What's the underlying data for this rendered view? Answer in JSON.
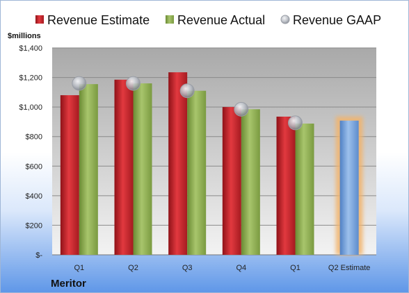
{
  "chart_data": {
    "type": "bar",
    "title": "",
    "ylabel": "$millions",
    "company": "Meritor",
    "categories": [
      "Q1",
      "Q2",
      "Q3",
      "Q4",
      "Q1",
      "Q2 Estimate"
    ],
    "ylim": [
      0,
      1400
    ],
    "yticks": [
      0,
      200,
      400,
      600,
      800,
      1000,
      1200,
      1400
    ],
    "ytick_labels": [
      "$-",
      "$200",
      "$400",
      "$600",
      "$800",
      "$1,000",
      "$1,200",
      "$1,400"
    ],
    "grid": true,
    "legend_position": "top",
    "series": [
      {
        "name": "Revenue Estimate",
        "type": "bar",
        "color": "#c0272d",
        "values": [
          1080,
          1185,
          1235,
          1000,
          935,
          null
        ]
      },
      {
        "name": "Revenue Actual",
        "type": "bar",
        "color": "#8aab4e",
        "values": [
          1155,
          1160,
          1110,
          985,
          888,
          null
        ]
      },
      {
        "name": "Revenue GAAP",
        "type": "scatter",
        "color": "#b8bcc4",
        "values": [
          1160,
          1160,
          1110,
          985,
          893,
          null
        ]
      }
    ],
    "estimate_bar": {
      "category": "Q2 Estimate",
      "value": 908,
      "color": "#7aa7dd",
      "glow": "#f2b46c"
    }
  }
}
